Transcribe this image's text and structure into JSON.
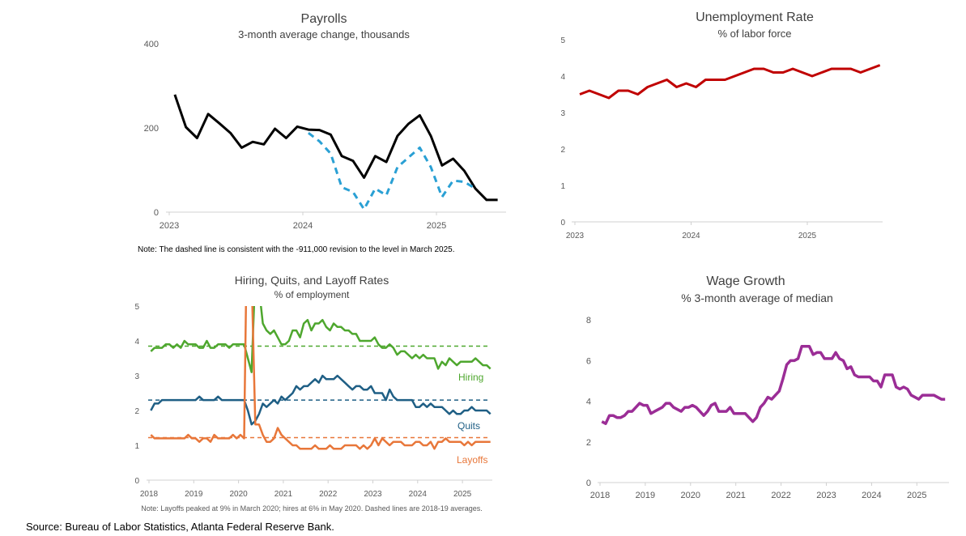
{
  "source": "Source: Bureau of Labor Statistics, Atlanta Federal Reserve Bank.",
  "chart_data": [
    {
      "type": "line",
      "title": "Payrolls",
      "subtitle": "3-month average change, thousands",
      "note": "Note: The dashed line is consistent with the -911,000 revision to the level in March 2025.",
      "x_ticks": [
        "2023",
        "2024",
        "2025"
      ],
      "y_ticks": [
        "0",
        "200",
        "400"
      ],
      "ylim": [
        0,
        400
      ],
      "x_start": "2023-01",
      "series": [
        {
          "style": "solid",
          "color": "#000000",
          "start": "2023-01",
          "values": [
            279,
            202,
            176,
            233,
            211,
            188,
            153,
            167,
            161,
            198,
            176,
            203,
            196,
            195,
            184,
            133,
            122,
            82,
            133,
            119,
            181,
            210,
            230,
            181,
            111,
            127,
            98,
            56,
            29,
            29
          ]
        },
        {
          "style": "dashed",
          "color": "#2aa0d4",
          "start": "2024-01",
          "values": [
            188,
            168,
            139,
            59,
            48,
            7,
            56,
            40,
            107,
            130,
            153,
            107,
            36,
            75,
            72,
            56
          ]
        }
      ]
    },
    {
      "type": "line",
      "title": "Unemployment Rate",
      "subtitle": "% of labor force",
      "x_ticks": [
        "2023",
        "2024",
        "2025"
      ],
      "y_ticks": [
        "0",
        "1",
        "2",
        "3",
        "4",
        "5"
      ],
      "ylim": [
        0,
        5
      ],
      "series": [
        {
          "style": "solid",
          "color": "#c00000",
          "start": "2023-01",
          "values": [
            3.5,
            3.6,
            3.5,
            3.4,
            3.6,
            3.6,
            3.5,
            3.7,
            3.8,
            3.9,
            3.7,
            3.8,
            3.7,
            3.9,
            3.9,
            3.9,
            4.0,
            4.1,
            4.2,
            4.2,
            4.1,
            4.1,
            4.2,
            4.1,
            4.0,
            4.1,
            4.2,
            4.2,
            4.2,
            4.1,
            4.2,
            4.3
          ]
        }
      ]
    },
    {
      "type": "line",
      "title": "Hiring, Quits, and Layoff Rates",
      "subtitle": "% of employment",
      "note": "Note: Layoffs peaked at 9% in March 2020; hires at 6% in May 2020. Dashed lines are 2018-19 averages.",
      "x_ticks": [
        "2018",
        "2019",
        "2020",
        "2021",
        "2022",
        "2023",
        "2024",
        "2025"
      ],
      "y_ticks": [
        "0",
        "1",
        "2",
        "3",
        "4",
        "5"
      ],
      "ylim": [
        0,
        5
      ],
      "series": [
        {
          "name": "Hiring",
          "color": "#4ea72e",
          "start": "2018-01",
          "average_2018_19": 3.85,
          "values": [
            3.7,
            3.8,
            3.8,
            3.8,
            3.9,
            3.9,
            3.8,
            3.9,
            3.8,
            4.0,
            3.9,
            3.9,
            3.9,
            3.8,
            3.8,
            4.0,
            3.8,
            3.8,
            3.9,
            3.9,
            3.9,
            3.8,
            3.9,
            3.9,
            3.9,
            3.9,
            3.5,
            3.1,
            6.0,
            5.5,
            4.5,
            4.3,
            4.2,
            4.3,
            4.1,
            3.9,
            3.9,
            4.0,
            4.3,
            4.3,
            4.1,
            4.5,
            4.6,
            4.3,
            4.5,
            4.5,
            4.6,
            4.4,
            4.3,
            4.5,
            4.4,
            4.4,
            4.3,
            4.3,
            4.2,
            4.2,
            4.0,
            4.0,
            4.0,
            4.0,
            4.1,
            3.9,
            3.8,
            3.8,
            3.9,
            3.8,
            3.6,
            3.7,
            3.7,
            3.6,
            3.5,
            3.6,
            3.5,
            3.6,
            3.5,
            3.5,
            3.5,
            3.2,
            3.4,
            3.3,
            3.5,
            3.4,
            3.3,
            3.4,
            3.4,
            3.4,
            3.4,
            3.5,
            3.4,
            3.3,
            3.3,
            3.2
          ]
        },
        {
          "name": "Quits",
          "color": "#1f5f85",
          "start": "2018-01",
          "average_2018_19": 2.3,
          "values": [
            2.0,
            2.2,
            2.2,
            2.3,
            2.3,
            2.3,
            2.3,
            2.3,
            2.3,
            2.3,
            2.3,
            2.3,
            2.3,
            2.4,
            2.3,
            2.3,
            2.3,
            2.3,
            2.4,
            2.3,
            2.3,
            2.3,
            2.3,
            2.3,
            2.3,
            2.3,
            2.0,
            1.6,
            1.7,
            1.9,
            2.2,
            2.1,
            2.2,
            2.3,
            2.2,
            2.4,
            2.3,
            2.4,
            2.5,
            2.7,
            2.6,
            2.7,
            2.7,
            2.8,
            2.9,
            2.8,
            3.0,
            2.9,
            2.9,
            2.9,
            3.0,
            2.9,
            2.8,
            2.7,
            2.6,
            2.7,
            2.7,
            2.6,
            2.6,
            2.7,
            2.5,
            2.5,
            2.5,
            2.3,
            2.6,
            2.4,
            2.3,
            2.3,
            2.3,
            2.3,
            2.3,
            2.1,
            2.1,
            2.2,
            2.1,
            2.2,
            2.1,
            2.1,
            2.1,
            2.0,
            1.9,
            2.0,
            1.9,
            1.9,
            2.0,
            2.0,
            2.1,
            2.0,
            2.0,
            2.0,
            2.0,
            1.9
          ]
        },
        {
          "name": "Layoffs",
          "color": "#e8773a",
          "start": "2018-01",
          "average_2018_19": 1.22,
          "values": [
            1.3,
            1.2,
            1.2,
            1.2,
            1.2,
            1.2,
            1.2,
            1.2,
            1.2,
            1.2,
            1.3,
            1.2,
            1.2,
            1.1,
            1.2,
            1.2,
            1.1,
            1.3,
            1.2,
            1.2,
            1.2,
            1.2,
            1.3,
            1.2,
            1.3,
            1.2,
            9.0,
            5.9,
            1.6,
            1.6,
            1.3,
            1.1,
            1.1,
            1.2,
            1.5,
            1.3,
            1.2,
            1.1,
            1.0,
            1.0,
            0.9,
            0.9,
            0.9,
            0.9,
            1.0,
            0.9,
            0.9,
            0.9,
            1.0,
            0.9,
            0.9,
            0.9,
            1.0,
            1.0,
            1.0,
            1.0,
            0.9,
            1.0,
            0.9,
            1.0,
            1.2,
            1.0,
            1.2,
            1.1,
            1.0,
            1.1,
            1.1,
            1.1,
            1.0,
            1.0,
            1.0,
            1.1,
            1.1,
            1.0,
            1.0,
            1.1,
            0.9,
            1.1,
            1.1,
            1.2,
            1.1,
            1.1,
            1.1,
            1.1,
            1.0,
            1.1,
            1.0,
            1.1,
            1.1,
            1.1,
            1.1,
            1.1
          ]
        }
      ]
    },
    {
      "type": "line",
      "title": "Wage Growth",
      "subtitle": "% 3-month average of median",
      "x_ticks": [
        "2018",
        "2019",
        "2020",
        "2021",
        "2022",
        "2023",
        "2024",
        "2025"
      ],
      "y_ticks": [
        "0",
        "2",
        "4",
        "6",
        "8"
      ],
      "ylim": [
        0,
        8
      ],
      "series": [
        {
          "style": "solid",
          "color": "#9b2d96",
          "start": "2018-01",
          "values": [
            3.0,
            2.9,
            3.3,
            3.3,
            3.2,
            3.2,
            3.3,
            3.5,
            3.5,
            3.7,
            3.9,
            3.8,
            3.8,
            3.4,
            3.5,
            3.6,
            3.7,
            3.9,
            3.9,
            3.7,
            3.6,
            3.5,
            3.7,
            3.7,
            3.8,
            3.7,
            3.5,
            3.3,
            3.5,
            3.8,
            3.9,
            3.5,
            3.5,
            3.5,
            3.7,
            3.4,
            3.4,
            3.4,
            3.4,
            3.2,
            3.0,
            3.2,
            3.7,
            3.9,
            4.2,
            4.1,
            4.3,
            4.5,
            5.1,
            5.8,
            6.0,
            6.0,
            6.1,
            6.7,
            6.7,
            6.7,
            6.3,
            6.4,
            6.4,
            6.1,
            6.1,
            6.1,
            6.4,
            6.1,
            6.0,
            5.6,
            5.7,
            5.3,
            5.2,
            5.2,
            5.2,
            5.2,
            5.0,
            5.0,
            4.7,
            5.3,
            5.3,
            5.3,
            4.7,
            4.6,
            4.7,
            4.6,
            4.3,
            4.2,
            4.1,
            4.3,
            4.3,
            4.3,
            4.3,
            4.2,
            4.1,
            4.1
          ]
        }
      ]
    }
  ]
}
